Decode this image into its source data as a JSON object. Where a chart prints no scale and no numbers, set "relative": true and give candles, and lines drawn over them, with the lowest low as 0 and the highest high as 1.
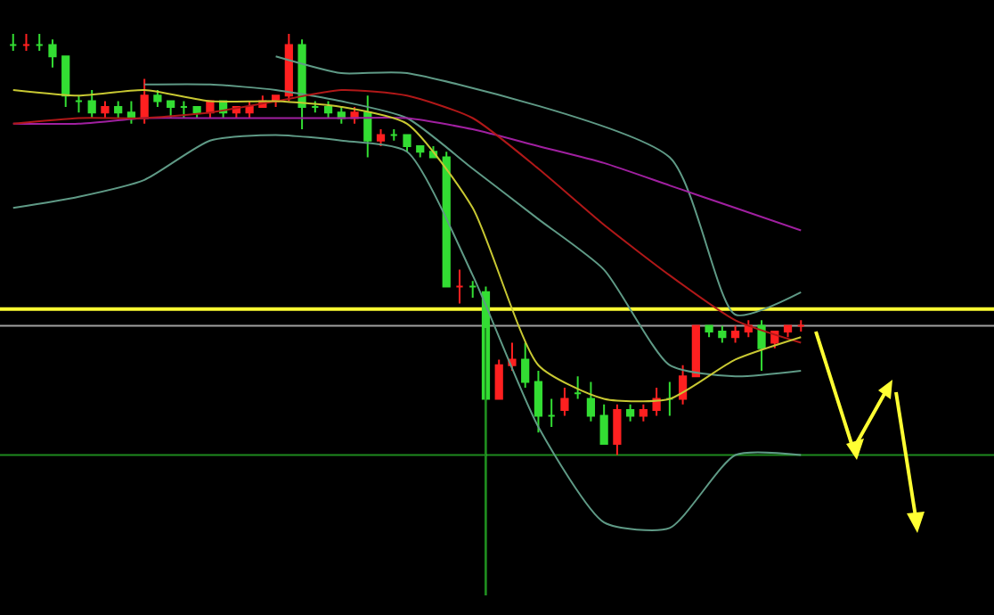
{
  "chart_data": {
    "type": "candlestick",
    "relative": true,
    "grid": false,
    "categories": [
      null,
      null,
      null,
      null,
      null,
      null,
      null,
      null,
      null,
      null,
      null,
      null,
      null,
      null,
      null,
      null,
      null,
      null,
      null,
      null,
      null,
      null,
      null,
      null,
      null,
      null,
      null,
      null,
      null,
      null,
      null,
      null,
      null,
      null,
      null,
      null,
      null,
      null,
      null,
      null,
      null,
      null,
      null,
      null,
      null,
      null,
      null,
      null,
      null,
      null,
      null,
      null,
      null,
      null,
      null,
      null,
      null,
      null,
      null,
      null,
      null
    ],
    "ohlc": [
      [
        0.98,
        1.0,
        0.97,
        0.98
      ],
      [
        0.98,
        1.0,
        0.97,
        0.98
      ],
      [
        0.98,
        1.0,
        0.97,
        0.98
      ],
      [
        0.98,
        0.99,
        0.94,
        0.96
      ],
      [
        0.96,
        0.96,
        0.87,
        0.89
      ],
      [
        0.88,
        0.89,
        0.86,
        0.88
      ],
      [
        0.88,
        0.9,
        0.85,
        0.86
      ],
      [
        0.86,
        0.88,
        0.85,
        0.87
      ],
      [
        0.87,
        0.88,
        0.85,
        0.86
      ],
      [
        0.86,
        0.88,
        0.84,
        0.85
      ],
      [
        0.85,
        0.92,
        0.84,
        0.89
      ],
      [
        0.89,
        0.9,
        0.87,
        0.88
      ],
      [
        0.88,
        0.88,
        0.85,
        0.87
      ],
      [
        0.87,
        0.88,
        0.85,
        0.87
      ],
      [
        0.87,
        0.87,
        0.85,
        0.86
      ],
      [
        0.86,
        0.88,
        0.85,
        0.88
      ],
      [
        0.88,
        0.88,
        0.85,
        0.86
      ],
      [
        0.86,
        0.87,
        0.85,
        0.87
      ],
      [
        0.86,
        0.88,
        0.85,
        0.87
      ],
      [
        0.87,
        0.89,
        0.87,
        0.88
      ],
      [
        0.88,
        0.89,
        0.87,
        0.89
      ],
      [
        0.89,
        1.0,
        0.88,
        0.98
      ],
      [
        0.98,
        0.99,
        0.83,
        0.87
      ],
      [
        0.87,
        0.88,
        0.86,
        0.87
      ],
      [
        0.87,
        0.88,
        0.85,
        0.86
      ],
      [
        0.86,
        0.87,
        0.84,
        0.85
      ],
      [
        0.85,
        0.87,
        0.84,
        0.86
      ],
      [
        0.86,
        0.89,
        0.78,
        0.81
      ],
      [
        0.81,
        0.83,
        0.8,
        0.82
      ],
      [
        0.82,
        0.83,
        0.81,
        0.82
      ],
      [
        0.82,
        0.82,
        0.79,
        0.8
      ],
      [
        0.8,
        0.8,
        0.78,
        0.79
      ],
      [
        0.79,
        0.8,
        0.78,
        0.78
      ],
      [
        0.78,
        0.79,
        0.55,
        0.55
      ],
      [
        0.55,
        0.58,
        0.52,
        0.55
      ],
      [
        0.55,
        0.56,
        0.53,
        0.55
      ],
      [
        0.54,
        0.55,
        0,
        0.35
      ],
      [
        0.35,
        0.42,
        0.35,
        0.41
      ],
      [
        0.41,
        0.45,
        0.4,
        0.42
      ],
      [
        0.42,
        0.45,
        0.37,
        0.38
      ],
      [
        0.38,
        0.4,
        0.29,
        0.32
      ],
      [
        0.32,
        0.35,
        0.3,
        0.32
      ],
      [
        0.33,
        0.37,
        0.32,
        0.35
      ],
      [
        0.36,
        0.39,
        0.35,
        0.36
      ],
      [
        0.35,
        0.38,
        0.31,
        0.32
      ],
      [
        0.32,
        0.34,
        0.27,
        0.27
      ],
      [
        0.27,
        0.34,
        0.25,
        0.33
      ],
      [
        0.33,
        0.34,
        0.31,
        0.32
      ],
      [
        0.32,
        0.34,
        0.31,
        0.33
      ],
      [
        0.33,
        0.37,
        0.32,
        0.35
      ],
      [
        0.35,
        0.38,
        0.32,
        0.35
      ],
      [
        0.35,
        0.41,
        0.34,
        0.39
      ],
      [
        0.39,
        0.48,
        0.39,
        0.48
      ],
      [
        0.48,
        0.48,
        0.46,
        0.47
      ],
      [
        0.47,
        0.48,
        0.45,
        0.46
      ],
      [
        0.46,
        0.48,
        0.45,
        0.47
      ],
      [
        0.47,
        0.49,
        0.46,
        0.48
      ],
      [
        0.48,
        0.49,
        0.4,
        0.44
      ],
      [
        0.45,
        0.47,
        0.44,
        0.47
      ],
      [
        0.47,
        0.48,
        0.46,
        0.48
      ],
      [
        0.48,
        0.49,
        0.47,
        0.48
      ]
    ],
    "colors": [
      "#33dd33",
      "#ff2020",
      "#33dd33",
      "#33dd33",
      "#33dd33",
      "#33dd33",
      "#33dd33",
      "#ff2020",
      "#33dd33",
      "#33dd33",
      "#ff2020",
      "#33dd33",
      "#33dd33",
      "#33dd33",
      "#33dd33",
      "#ff2020",
      "#33dd33",
      "#ff2020",
      "#ff2020",
      "#ff2020",
      "#ff2020",
      "#ff2020",
      "#33dd33",
      "#33dd33",
      "#33dd33",
      "#33dd33",
      "#ff2020",
      "#33dd33",
      "#ff2020",
      "#33dd33",
      "#33dd33",
      "#33dd33",
      "#33dd33",
      "#33dd33",
      "#ff2020",
      "#33dd33",
      "#33dd33",
      "#ff2020",
      "#ff2020",
      "#33dd33",
      "#33dd33",
      "#33dd33",
      "#ff2020",
      "#33dd33",
      "#33dd33",
      "#33dd33",
      "#ff2020",
      "#33dd33",
      "#ff2020",
      "#ff2020",
      "#33dd33",
      "#ff2020",
      "#ff2020",
      "#33dd33",
      "#33dd33",
      "#ff2020",
      "#ff2020",
      "#33dd33",
      "#ff2020",
      "#ff2020",
      "#ff2020"
    ],
    "series": [
      {
        "type": "line",
        "color": "#5f9a86",
        "values": [
          null,
          null,
          null,
          null,
          null,
          null,
          null,
          null,
          null,
          null,
          null,
          null,
          null,
          null,
          null,
          null,
          null,
          null,
          null,
          null,
          0.96,
          null,
          null,
          null,
          null,
          0.93,
          null,
          null,
          null,
          null,
          0.93,
          null,
          null,
          null,
          null,
          null,
          null,
          null,
          null,
          null,
          null,
          null,
          null,
          null,
          null,
          null,
          null,
          null,
          null,
          null,
          0.78,
          null,
          null,
          null,
          null,
          0.5,
          null,
          null,
          null,
          null,
          0.54
        ]
      },
      {
        "type": "line",
        "color": "#5f9a86",
        "values": [
          null,
          null,
          null,
          null,
          null,
          null,
          null,
          null,
          null,
          null,
          0.91,
          null,
          null,
          null,
          null,
          0.91,
          null,
          null,
          null,
          null,
          0.9,
          null,
          null,
          null,
          null,
          0.88,
          null,
          null,
          null,
          null,
          0.85,
          null,
          null,
          null,
          null,
          0.76,
          null,
          null,
          null,
          null,
          0.67,
          null,
          null,
          null,
          null,
          0.58,
          null,
          null,
          null,
          null,
          0.41,
          null,
          null,
          null,
          null,
          0.39,
          null,
          null,
          null,
          null,
          0.4
        ]
      },
      {
        "type": "line",
        "color": "#5f9a86",
        "values": [
          0.69,
          null,
          null,
          null,
          null,
          0.71,
          null,
          null,
          null,
          null,
          0.74,
          null,
          null,
          null,
          null,
          0.81,
          null,
          null,
          null,
          null,
          0.82,
          null,
          null,
          null,
          null,
          0.81,
          null,
          null,
          null,
          null,
          0.79,
          null,
          null,
          null,
          null,
          0.57,
          null,
          null,
          null,
          null,
          0.3,
          null,
          null,
          null,
          null,
          0.13,
          null,
          null,
          null,
          null,
          0.12,
          null,
          null,
          null,
          null,
          0.25,
          null,
          null,
          null,
          null,
          0.25
        ]
      },
      {
        "type": "line",
        "color": "#a020a0",
        "values": [
          0.84,
          null,
          null,
          null,
          null,
          0.84,
          null,
          null,
          null,
          null,
          0.85,
          null,
          null,
          null,
          null,
          0.85,
          null,
          null,
          null,
          null,
          0.85,
          null,
          null,
          null,
          null,
          0.85,
          null,
          null,
          null,
          null,
          0.85,
          null,
          null,
          null,
          null,
          0.83,
          null,
          null,
          null,
          null,
          0.8,
          null,
          null,
          null,
          null,
          0.77,
          null,
          null,
          null,
          null,
          0.73,
          null,
          null,
          null,
          null,
          0.69,
          null,
          null,
          null,
          null,
          0.65
        ]
      },
      {
        "type": "line",
        "color": "#b01818",
        "values": [
          0.84,
          null,
          null,
          null,
          null,
          0.85,
          null,
          null,
          null,
          null,
          0.85,
          null,
          null,
          null,
          null,
          0.86,
          null,
          null,
          null,
          null,
          0.88,
          null,
          null,
          null,
          null,
          0.9,
          null,
          null,
          null,
          null,
          0.89,
          null,
          null,
          null,
          null,
          0.85,
          null,
          null,
          null,
          null,
          0.76,
          null,
          null,
          null,
          null,
          0.66,
          null,
          null,
          null,
          null,
          0.57,
          null,
          null,
          null,
          null,
          0.49,
          null,
          null,
          null,
          null,
          0.45
        ]
      },
      {
        "type": "line",
        "color": "#c8c832",
        "values": [
          0.9,
          null,
          null,
          null,
          null,
          0.89,
          null,
          null,
          null,
          null,
          0.9,
          null,
          null,
          null,
          null,
          0.88,
          null,
          null,
          null,
          null,
          0.88,
          null,
          null,
          null,
          null,
          0.87,
          null,
          null,
          null,
          null,
          0.84,
          null,
          null,
          null,
          null,
          0.69,
          null,
          null,
          null,
          null,
          0.41,
          null,
          null,
          null,
          null,
          0.35,
          null,
          null,
          null,
          null,
          0.35,
          null,
          null,
          null,
          null,
          0.42,
          null,
          null,
          null,
          null,
          0.46
        ]
      }
    ],
    "ref_lines": [
      {
        "axis": "y",
        "value": 0.51,
        "color": "#ffff33"
      },
      {
        "axis": "y",
        "value": 0.48,
        "color": "#a0a0a0"
      },
      {
        "axis": "y",
        "value": 0.25,
        "color": "#1e8a1e"
      }
    ]
  }
}
